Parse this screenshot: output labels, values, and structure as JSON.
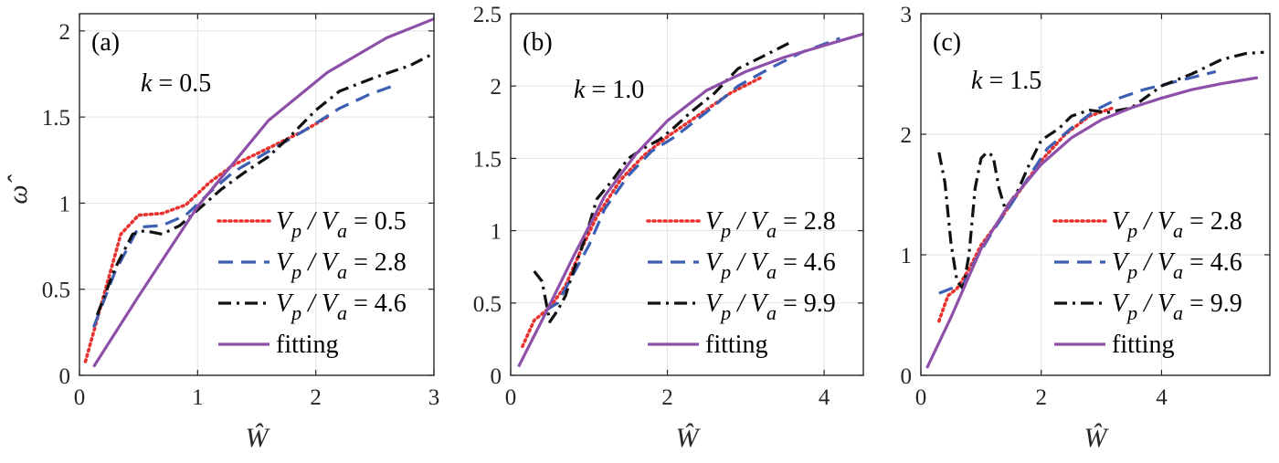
{
  "chart_data": [
    {
      "type": "line",
      "panel_label": "(a)",
      "annotation": "k = 0.5",
      "annotation_var": "k",
      "annotation_rest": " = 0.5",
      "xlabel": "Ŵ",
      "ylabel": "ω̂",
      "xlim": [
        0,
        3
      ],
      "ylim": [
        0,
        2.1
      ],
      "xticks": [
        0,
        1,
        2,
        3
      ],
      "xtick_labels": [
        "0",
        "1",
        "2",
        "3"
      ],
      "yticks": [
        0,
        0.5,
        1,
        1.5,
        2
      ],
      "ytick_labels": [
        "0",
        "0.5",
        "1",
        "1.5",
        "2"
      ],
      "grid": true,
      "legend_position": "bottom-right",
      "series": [
        {
          "name": "Vp / Va = 0.5",
          "legend_lhs": "V",
          "legend_sub1": "p",
          "legend_mid": " / V",
          "legend_sub2": "a",
          "legend_rhs": " = 0.5",
          "style": "dotted",
          "color": "#e8322f",
          "x": [
            0.05,
            0.2,
            0.35,
            0.5,
            0.7,
            0.9,
            1.1,
            1.3,
            1.6,
            1.9,
            2.1
          ],
          "y": [
            0.08,
            0.45,
            0.82,
            0.93,
            0.94,
            0.99,
            1.12,
            1.22,
            1.32,
            1.42,
            1.5
          ]
        },
        {
          "name": "Vp / Va = 2.8",
          "legend_lhs": "V",
          "legend_sub1": "p",
          "legend_mid": " / V",
          "legend_sub2": "a",
          "legend_rhs": " = 2.8",
          "style": "dashed",
          "color": "#3d5fb3",
          "x": [
            0.12,
            0.3,
            0.5,
            0.7,
            0.9,
            1.1,
            1.3,
            1.6,
            1.9,
            2.2,
            2.45,
            2.65
          ],
          "y": [
            0.28,
            0.6,
            0.86,
            0.87,
            0.93,
            1.06,
            1.18,
            1.3,
            1.42,
            1.55,
            1.63,
            1.68
          ]
        },
        {
          "name": "Vp / Va = 4.6",
          "legend_lhs": "V",
          "legend_sub1": "p",
          "legend_mid": " / V",
          "legend_sub2": "a",
          "legend_rhs": " = 4.6",
          "style": "dashdot",
          "color": "#111111",
          "x": [
            0.15,
            0.3,
            0.45,
            0.55,
            0.7,
            0.85,
            1.0,
            1.2,
            1.4,
            1.6,
            1.8,
            2.0,
            2.2,
            2.5,
            2.8,
            3.0
          ],
          "y": [
            0.35,
            0.62,
            0.82,
            0.84,
            0.82,
            0.87,
            0.96,
            1.08,
            1.18,
            1.27,
            1.4,
            1.54,
            1.65,
            1.73,
            1.8,
            1.87
          ]
        },
        {
          "name": "fitting",
          "legend_lhs": "fitting",
          "style": "solid",
          "color": "#8e4fa8",
          "x": [
            0.12,
            0.5,
            1.0,
            1.6,
            2.1,
            2.6,
            3.0
          ],
          "y": [
            0.05,
            0.46,
            0.98,
            1.48,
            1.76,
            1.96,
            2.07
          ]
        }
      ]
    },
    {
      "type": "line",
      "panel_label": "(b)",
      "annotation": "k = 1.0",
      "annotation_var": "k",
      "annotation_rest": " = 1.0",
      "xlabel": "Ŵ",
      "ylabel": "",
      "xlim": [
        0,
        4.5
      ],
      "ylim": [
        0,
        2.5
      ],
      "xticks": [
        0,
        2,
        4
      ],
      "xtick_labels": [
        "0",
        "2",
        "4"
      ],
      "yticks": [
        0,
        0.5,
        1,
        1.5,
        2,
        2.5
      ],
      "ytick_labels": [
        "0",
        "0.5",
        "1",
        "1.5",
        "2",
        "2.5"
      ],
      "grid": true,
      "legend_position": "bottom-right",
      "series": [
        {
          "name": "Vp / Va = 2.8",
          "legend_lhs": "V",
          "legend_sub1": "p",
          "legend_mid": " / V",
          "legend_sub2": "a",
          "legend_rhs": " = 2.8",
          "style": "dotted",
          "color": "#e8322f",
          "x": [
            0.15,
            0.3,
            0.5,
            0.7,
            0.9,
            1.1,
            1.4,
            1.7,
            2.0,
            2.4,
            2.8,
            3.2
          ],
          "y": [
            0.2,
            0.38,
            0.47,
            0.62,
            0.87,
            1.1,
            1.35,
            1.52,
            1.65,
            1.8,
            1.95,
            2.06
          ]
        },
        {
          "name": "Vp / Va = 4.6",
          "legend_lhs": "V",
          "legend_sub1": "p",
          "legend_mid": " / V",
          "legend_sub2": "a",
          "legend_rhs": " = 4.6",
          "style": "dashed",
          "color": "#3d5fb3",
          "x": [
            0.45,
            0.6,
            0.8,
            1.0,
            1.2,
            1.5,
            1.8,
            2.1,
            2.5,
            2.9,
            3.3,
            3.7,
            4.2
          ],
          "y": [
            0.45,
            0.5,
            0.7,
            0.9,
            1.15,
            1.38,
            1.55,
            1.65,
            1.82,
            2.0,
            2.12,
            2.23,
            2.33
          ]
        },
        {
          "name": "Vp / Va = 9.9",
          "legend_lhs": "V",
          "legend_sub1": "p",
          "legend_mid": " / V",
          "legend_sub2": "a",
          "legend_rhs": " = 9.9",
          "style": "dashdot",
          "color": "#111111",
          "x": [
            0.3,
            0.4,
            0.5,
            0.6,
            0.7,
            0.8,
            0.95,
            1.1,
            1.3,
            1.5,
            1.7,
            1.9,
            2.1,
            2.3,
            2.6,
            2.9,
            3.2,
            3.6
          ],
          "y": [
            0.72,
            0.65,
            0.37,
            0.45,
            0.55,
            0.72,
            0.95,
            1.22,
            1.35,
            1.5,
            1.57,
            1.63,
            1.72,
            1.82,
            1.95,
            2.12,
            2.2,
            2.31
          ]
        },
        {
          "name": "fitting",
          "legend_lhs": "fitting",
          "style": "solid",
          "color": "#8e4fa8",
          "x": [
            0.1,
            0.4,
            0.8,
            1.2,
            1.6,
            2.0,
            2.5,
            3.0,
            3.5,
            4.0,
            4.5
          ],
          "y": [
            0.06,
            0.38,
            0.82,
            1.24,
            1.53,
            1.76,
            1.97,
            2.1,
            2.2,
            2.28,
            2.36
          ]
        }
      ]
    },
    {
      "type": "line",
      "panel_label": "(c)",
      "annotation": "k = 1.5",
      "annotation_var": "k",
      "annotation_rest": " = 1.5",
      "xlabel": "Ŵ",
      "ylabel": "",
      "xlim": [
        0,
        5.8
      ],
      "ylim": [
        0,
        3
      ],
      "xticks": [
        0,
        2,
        4
      ],
      "xtick_labels": [
        "0",
        "2",
        "4"
      ],
      "yticks": [
        0,
        1,
        2,
        3
      ],
      "ytick_labels": [
        "0",
        "1",
        "2",
        "3"
      ],
      "grid": true,
      "legend_position": "bottom-right",
      "series": [
        {
          "name": "Vp / Va = 2.8",
          "legend_lhs": "V",
          "legend_sub1": "p",
          "legend_mid": " / V",
          "legend_sub2": "a",
          "legend_rhs": " = 2.8",
          "style": "dotted",
          "color": "#e8322f",
          "x": [
            0.3,
            0.45,
            0.6,
            0.8,
            1.0,
            1.3,
            1.6,
            2.0,
            2.4,
            2.8,
            3.2
          ],
          "y": [
            0.45,
            0.66,
            0.72,
            0.88,
            1.08,
            1.28,
            1.5,
            1.78,
            2.0,
            2.15,
            2.22
          ]
        },
        {
          "name": "Vp / Va = 4.6",
          "legend_lhs": "V",
          "legend_sub1": "p",
          "legend_mid": " / V",
          "legend_sub2": "a",
          "legend_rhs": " = 4.6",
          "style": "dashed",
          "color": "#3d5fb3",
          "x": [
            0.3,
            0.5,
            0.7,
            0.9,
            1.2,
            1.5,
            1.8,
            2.1,
            2.5,
            2.9,
            3.3,
            3.7,
            4.1,
            4.5,
            4.9
          ],
          "y": [
            0.68,
            0.72,
            0.75,
            0.95,
            1.2,
            1.42,
            1.65,
            1.88,
            2.05,
            2.2,
            2.3,
            2.37,
            2.42,
            2.47,
            2.52
          ]
        },
        {
          "name": "Vp / Va = 9.9",
          "legend_lhs": "V",
          "legend_sub1": "p",
          "legend_mid": " / V",
          "legend_sub2": "a",
          "legend_rhs": " = 9.9",
          "style": "dashdot",
          "color": "#111111",
          "x": [
            0.3,
            0.4,
            0.5,
            0.6,
            0.7,
            0.8,
            0.9,
            1.0,
            1.1,
            1.2,
            1.3,
            1.4,
            1.6,
            1.8,
            2.0,
            2.3,
            2.5,
            2.8,
            3.1,
            3.5,
            4.0,
            4.5,
            5.0,
            5.4,
            5.7
          ],
          "y": [
            1.85,
            1.6,
            1.1,
            0.78,
            0.72,
            1.0,
            1.55,
            1.8,
            1.85,
            1.82,
            1.55,
            1.38,
            1.52,
            1.75,
            1.95,
            2.05,
            2.15,
            2.2,
            2.18,
            2.22,
            2.4,
            2.5,
            2.62,
            2.67,
            2.68
          ]
        },
        {
          "name": "fitting",
          "legend_lhs": "fitting",
          "style": "solid",
          "color": "#8e4fa8",
          "x": [
            0.1,
            0.5,
            1.0,
            1.5,
            2.0,
            2.5,
            3.0,
            3.5,
            4.0,
            4.5,
            5.0,
            5.6
          ],
          "y": [
            0.06,
            0.48,
            1.05,
            1.45,
            1.75,
            1.97,
            2.12,
            2.22,
            2.3,
            2.37,
            2.42,
            2.47
          ]
        }
      ]
    }
  ]
}
